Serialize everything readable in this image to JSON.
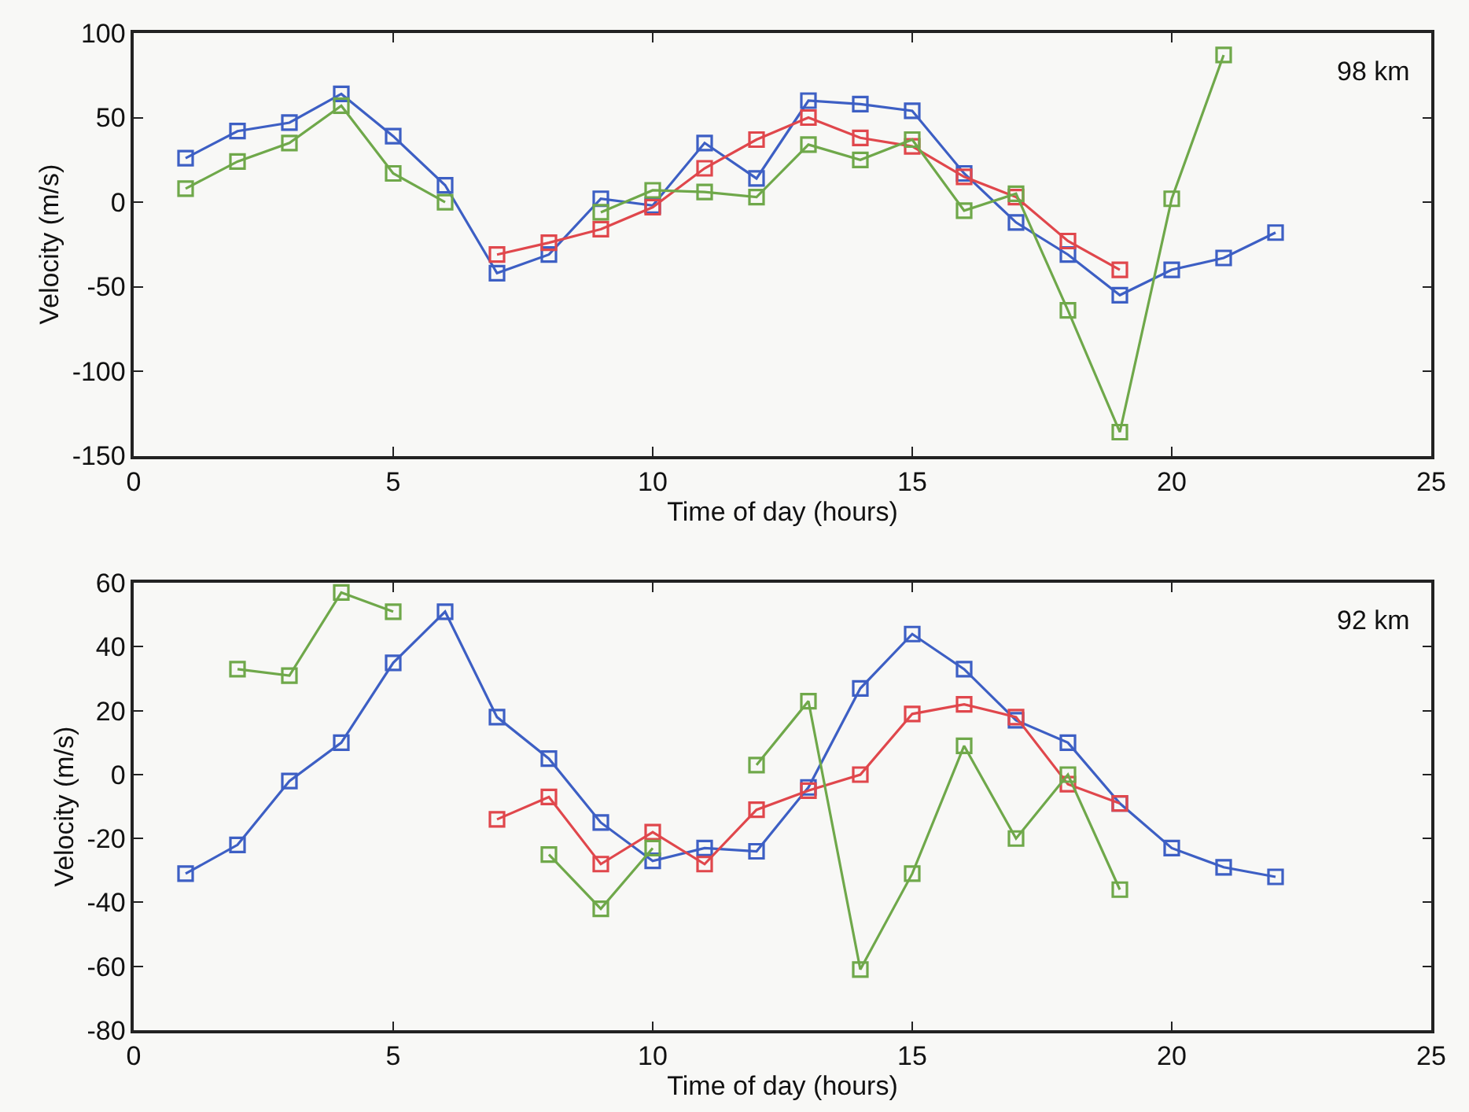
{
  "chart_data": [
    {
      "type": "line",
      "xlabel": "Time of day (hours)",
      "ylabel": "Velocity (m/s)",
      "annotations": [
        "98 km"
      ],
      "x": [
        1,
        2,
        3,
        4,
        5,
        6,
        7,
        8,
        9,
        10,
        11,
        12,
        13,
        14,
        15,
        16,
        17,
        18,
        19,
        20,
        21,
        22
      ],
      "xlim": [
        0,
        25
      ],
      "xticks": [
        0,
        5,
        10,
        15,
        20,
        25
      ],
      "ylim": [
        -150,
        100
      ],
      "yticks": [
        -150,
        -100,
        -50,
        0,
        50,
        100
      ],
      "marker": "square",
      "grid": false,
      "series": [
        {
          "color": "#3d5fc4",
          "values": [
            26,
            42,
            47,
            64,
            39,
            10,
            -42,
            -31,
            2,
            -2,
            35,
            14,
            60,
            58,
            54,
            17,
            -12,
            -31,
            -55,
            -40,
            -33,
            -18
          ]
        },
        {
          "color": "#e0474c",
          "values": [
            null,
            null,
            null,
            null,
            null,
            null,
            -31,
            -24,
            -16,
            -3,
            20,
            37,
            50,
            38,
            33,
            15,
            3,
            -23,
            -40,
            null,
            null,
            null
          ]
        },
        {
          "color": "#6fa84a",
          "values": [
            8,
            24,
            35,
            57,
            17,
            0,
            null,
            null,
            -6,
            7,
            6,
            3,
            34,
            25,
            37,
            -5,
            5,
            -64,
            -136,
            2,
            87,
            null
          ]
        }
      ]
    },
    {
      "type": "line",
      "xlabel": "Time of day (hours)",
      "ylabel": "Velocity (m/s)",
      "annotations": [
        "92 km"
      ],
      "x": [
        1,
        2,
        3,
        4,
        5,
        6,
        7,
        8,
        9,
        10,
        11,
        12,
        13,
        14,
        15,
        16,
        17,
        18,
        19,
        20,
        21,
        22
      ],
      "xlim": [
        0,
        25
      ],
      "xticks": [
        0,
        5,
        10,
        15,
        20,
        25
      ],
      "ylim": [
        -80,
        60
      ],
      "yticks": [
        -80,
        -60,
        -40,
        -20,
        0,
        20,
        40,
        60
      ],
      "marker": "square",
      "grid": false,
      "series": [
        {
          "color": "#3d5fc4",
          "values": [
            -31,
            -22,
            -2,
            10,
            35,
            51,
            18,
            5,
            -15,
            -27,
            -23,
            -24,
            -4,
            27,
            44,
            33,
            17,
            10,
            -9,
            -23,
            -29,
            -32
          ]
        },
        {
          "color": "#e0474c",
          "values": [
            null,
            null,
            null,
            null,
            null,
            null,
            -14,
            -7,
            -28,
            -18,
            -28,
            -11,
            -5,
            0,
            19,
            22,
            18,
            -3,
            -9,
            null,
            null,
            null
          ]
        },
        {
          "color": "#6fa84a",
          "values": [
            null,
            33,
            31,
            57,
            51,
            null,
            null,
            -25,
            -42,
            -23,
            null,
            3,
            23,
            -61,
            -31,
            9,
            -20,
            0,
            -36,
            null,
            null,
            null
          ]
        }
      ]
    }
  ]
}
